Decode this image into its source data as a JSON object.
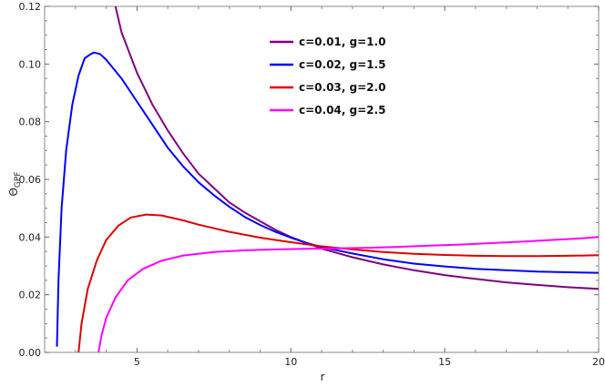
{
  "chart_data": {
    "type": "line",
    "xlabel": "r",
    "ylabel": "ΘGPF",
    "ylabel_main": "Θ",
    "ylabel_sub": "GPF",
    "xlim": [
      2,
      20
    ],
    "ylim": [
      0,
      0.12
    ],
    "xticks": [
      5,
      10,
      15,
      20
    ],
    "yticks": [
      0.0,
      0.02,
      0.04,
      0.06,
      0.08,
      0.1,
      0.12
    ],
    "ytick_labels": [
      "0.00",
      "0.02",
      "0.04",
      "0.06",
      "0.08",
      "0.10",
      "0.12"
    ],
    "grid": false,
    "legend_position": "top-center",
    "series": [
      {
        "name": "c=0.01, g=1.0",
        "color": "#800080",
        "points": [
          [
            4.3,
            0.12
          ],
          [
            4.5,
            0.111
          ],
          [
            5,
            0.097
          ],
          [
            5.5,
            0.086
          ],
          [
            6,
            0.077
          ],
          [
            6.5,
            0.069
          ],
          [
            7,
            0.062
          ],
          [
            7.5,
            0.057
          ],
          [
            8,
            0.052
          ],
          [
            8.5,
            0.0485
          ],
          [
            9,
            0.0455
          ],
          [
            9.5,
            0.0425
          ],
          [
            10,
            0.04
          ],
          [
            10.5,
            0.038
          ],
          [
            11,
            0.036
          ],
          [
            11.5,
            0.0345
          ],
          [
            12,
            0.033
          ],
          [
            13,
            0.0305
          ],
          [
            14,
            0.0285
          ],
          [
            15,
            0.0268
          ],
          [
            16,
            0.0255
          ],
          [
            17,
            0.0243
          ],
          [
            18,
            0.0234
          ],
          [
            19,
            0.0226
          ],
          [
            20,
            0.022
          ]
        ]
      },
      {
        "name": "c=0.02, g=1.5",
        "color": "#0000ff",
        "points": [
          [
            2.4,
            0.002
          ],
          [
            2.45,
            0.025
          ],
          [
            2.55,
            0.05
          ],
          [
            2.7,
            0.07
          ],
          [
            2.9,
            0.086
          ],
          [
            3.1,
            0.096
          ],
          [
            3.3,
            0.102
          ],
          [
            3.5,
            0.1035
          ],
          [
            3.6,
            0.104
          ],
          [
            3.8,
            0.1035
          ],
          [
            4,
            0.1015
          ],
          [
            4.5,
            0.095
          ],
          [
            5,
            0.087
          ],
          [
            5.5,
            0.079
          ],
          [
            6,
            0.071
          ],
          [
            6.5,
            0.0645
          ],
          [
            7,
            0.059
          ],
          [
            7.5,
            0.0545
          ],
          [
            8,
            0.0505
          ],
          [
            8.5,
            0.047
          ],
          [
            9,
            0.0442
          ],
          [
            9.5,
            0.0418
          ],
          [
            10,
            0.0398
          ],
          [
            10.5,
            0.038
          ],
          [
            11,
            0.0365
          ],
          [
            12,
            0.0343
          ],
          [
            13,
            0.0323
          ],
          [
            14,
            0.0308
          ],
          [
            15,
            0.0298
          ],
          [
            16,
            0.029
          ],
          [
            17,
            0.0285
          ],
          [
            18,
            0.028
          ],
          [
            19,
            0.0278
          ],
          [
            20,
            0.0276
          ]
        ]
      },
      {
        "name": "c=0.03, g=2.0",
        "color": "#e00000",
        "points": [
          [
            3.1,
            0.0
          ],
          [
            3.2,
            0.01
          ],
          [
            3.4,
            0.022
          ],
          [
            3.7,
            0.032
          ],
          [
            4,
            0.039
          ],
          [
            4.4,
            0.044
          ],
          [
            4.8,
            0.0468
          ],
          [
            5.3,
            0.0478
          ],
          [
            5.8,
            0.0475
          ],
          [
            6.5,
            0.0458
          ],
          [
            7,
            0.0443
          ],
          [
            8,
            0.0418
          ],
          [
            9,
            0.0398
          ],
          [
            10,
            0.0382
          ],
          [
            11,
            0.0368
          ],
          [
            12,
            0.0357
          ],
          [
            13,
            0.0348
          ],
          [
            14,
            0.0342
          ],
          [
            15,
            0.0338
          ],
          [
            16,
            0.0335
          ],
          [
            17,
            0.0334
          ],
          [
            18,
            0.0334
          ],
          [
            19,
            0.0335
          ],
          [
            20,
            0.0337
          ]
        ]
      },
      {
        "name": "c=0.04, g=2.5",
        "color": "#ff00ff",
        "points": [
          [
            3.75,
            0.0
          ],
          [
            3.85,
            0.006
          ],
          [
            4,
            0.012
          ],
          [
            4.3,
            0.019
          ],
          [
            4.7,
            0.025
          ],
          [
            5.2,
            0.029
          ],
          [
            5.8,
            0.0318
          ],
          [
            6.5,
            0.0336
          ],
          [
            7.5,
            0.0348
          ],
          [
            8.5,
            0.0354
          ],
          [
            9.5,
            0.0357
          ],
          [
            10.5,
            0.0359
          ],
          [
            11.5,
            0.0361
          ],
          [
            12.5,
            0.0363
          ],
          [
            13.5,
            0.0366
          ],
          [
            14.5,
            0.037
          ],
          [
            15.5,
            0.0374
          ],
          [
            16.5,
            0.0379
          ],
          [
            17.5,
            0.0384
          ],
          [
            18.5,
            0.039
          ],
          [
            19.5,
            0.0396
          ],
          [
            20,
            0.04
          ]
        ]
      }
    ]
  }
}
